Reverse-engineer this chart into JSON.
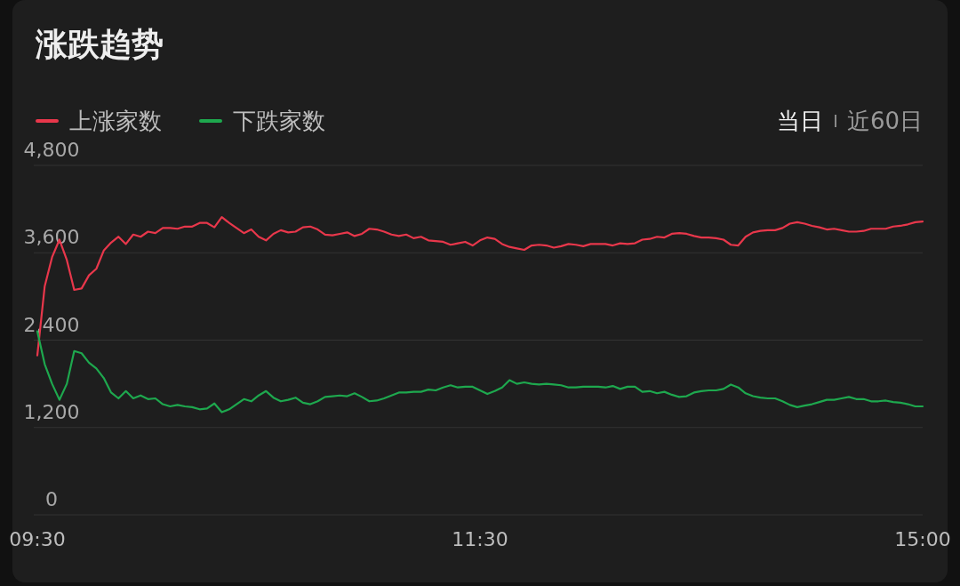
{
  "chart_data": {
    "type": "line",
    "title": "涨跌趋势",
    "legend": "top left",
    "grid": "y",
    "line_style": "solid",
    "marker": "none",
    "annotations": [
      "当日",
      "近60日"
    ],
    "categories": [
      "09:30",
      null,
      null,
      null,
      null,
      null,
      null,
      null,
      null,
      null,
      null,
      null,
      null,
      null,
      null,
      null,
      null,
      null,
      null,
      null,
      null,
      null,
      null,
      null,
      null,
      null,
      null,
      null,
      null,
      null,
      null,
      null,
      null,
      null,
      null,
      null,
      null,
      null,
      null,
      null,
      null,
      null,
      null,
      null,
      null,
      null,
      null,
      null,
      null,
      null,
      null,
      null,
      null,
      null,
      null,
      null,
      null,
      null,
      null,
      null,
      "11:30",
      null,
      null,
      null,
      null,
      null,
      null,
      null,
      null,
      null,
      null,
      null,
      null,
      null,
      null,
      null,
      null,
      null,
      null,
      null,
      null,
      null,
      null,
      null,
      null,
      null,
      null,
      null,
      null,
      null,
      null,
      null,
      null,
      null,
      null,
      null,
      null,
      null,
      null,
      null,
      null,
      null,
      null,
      null,
      null,
      null,
      null,
      null,
      null,
      null,
      null,
      null,
      null,
      null,
      null,
      null,
      null,
      null,
      null,
      null,
      "15:00"
    ],
    "ylim": [
      0,
      4800
    ],
    "yticks": [
      0,
      {
        "value": 1200,
        "label": "1,200"
      },
      {
        "value": 2400,
        "label": "2,400"
      },
      {
        "value": 3600,
        "label": "3,600"
      },
      {
        "value": 4800,
        "label": "4,800"
      }
    ],
    "series": [
      {
        "name": "上涨家数",
        "color": "#e8374b",
        "values": [
          2190,
          3140,
          3540,
          3780,
          3500,
          3090,
          3110,
          3290,
          3380,
          3630,
          3740,
          3820,
          3720,
          3850,
          3820,
          3890,
          3870,
          3940,
          3940,
          3930,
          3960,
          3960,
          4010,
          4010,
          3950,
          4090,
          4010,
          3940,
          3870,
          3920,
          3820,
          3770,
          3860,
          3910,
          3880,
          3890,
          3950,
          3960,
          3920,
          3850,
          3840,
          3860,
          3880,
          3830,
          3860,
          3930,
          3920,
          3890,
          3850,
          3830,
          3850,
          3800,
          3820,
          3770,
          3760,
          3750,
          3710,
          3730,
          3750,
          3700,
          3770,
          3810,
          3790,
          3720,
          3680,
          3660,
          3640,
          3700,
          3710,
          3700,
          3670,
          3690,
          3720,
          3710,
          3690,
          3720,
          3720,
          3720,
          3700,
          3730,
          3720,
          3730,
          3780,
          3790,
          3820,
          3810,
          3860,
          3870,
          3860,
          3830,
          3810,
          3810,
          3800,
          3780,
          3710,
          3700,
          3820,
          3880,
          3900,
          3910,
          3910,
          3940,
          4000,
          4020,
          4000,
          3970,
          3950,
          3920,
          3930,
          3910,
          3890,
          3890,
          3900,
          3930,
          3930,
          3930,
          3960,
          3970,
          3990,
          4020,
          4030
        ]
      },
      {
        "name": "下跌家数",
        "color": "#1ea84e",
        "values": [
          2520,
          2070,
          1800,
          1580,
          1800,
          2250,
          2220,
          2090,
          2010,
          1880,
          1680,
          1600,
          1700,
          1600,
          1640,
          1590,
          1600,
          1520,
          1490,
          1510,
          1490,
          1480,
          1450,
          1460,
          1530,
          1410,
          1450,
          1520,
          1590,
          1560,
          1640,
          1700,
          1610,
          1560,
          1580,
          1610,
          1540,
          1520,
          1560,
          1620,
          1630,
          1640,
          1630,
          1670,
          1620,
          1560,
          1570,
          1600,
          1640,
          1680,
          1680,
          1690,
          1690,
          1720,
          1710,
          1750,
          1780,
          1750,
          1760,
          1760,
          1710,
          1660,
          1700,
          1750,
          1850,
          1800,
          1820,
          1800,
          1790,
          1800,
          1790,
          1780,
          1750,
          1750,
          1760,
          1760,
          1760,
          1750,
          1770,
          1730,
          1760,
          1760,
          1690,
          1700,
          1670,
          1690,
          1650,
          1620,
          1630,
          1680,
          1700,
          1710,
          1710,
          1730,
          1790,
          1750,
          1670,
          1630,
          1610,
          1600,
          1600,
          1560,
          1510,
          1480,
          1500,
          1520,
          1550,
          1580,
          1580,
          1600,
          1620,
          1590,
          1590,
          1560,
          1560,
          1570,
          1550,
          1540,
          1520,
          1490,
          1490
        ]
      }
    ]
  }
}
